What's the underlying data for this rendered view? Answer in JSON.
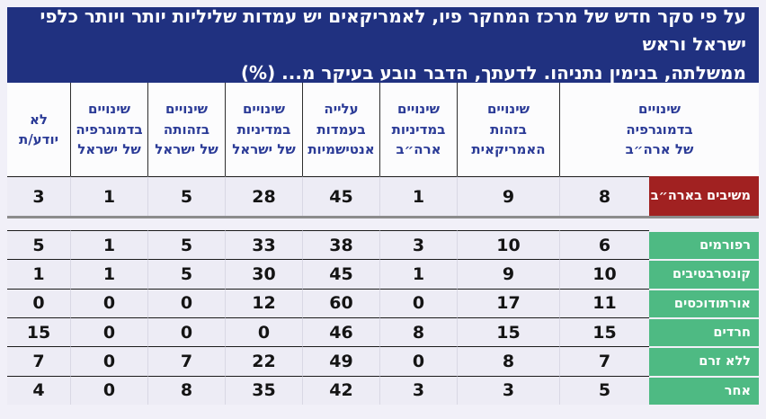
{
  "banner": {
    "line1": "על פי סקר חדש של מרכז המחקר פיו, לאמריקאים יש עמדות שליליות יותר ויותר כלפי ישראל וראש",
    "line2": "ממשלתה, בנימין נתניהו. לדעתך, הדבר נובע בעיקר מ... (%)"
  },
  "table": {
    "column_headers": [
      "שינויים\nבדמוגרפיה\nשל ארה״ב",
      "שינויים\nבזהות\nהאמריקאית",
      "שינויים\nבמדיניות\nארה״ב",
      "עלייה\nבעמדות\nאנטישמיות",
      "שינויים\nבמדיניות\nשל ישראל",
      "שינויים\nבזהותה\nשל ישראל",
      "שינויים\nבדמוגרפיה\nשל ישראל",
      "לא\nיודע/ת"
    ],
    "national_row": {
      "label": "משיבים בארה״ב",
      "values": [
        "8",
        "9",
        "1",
        "45",
        "28",
        "5",
        "1",
        "3"
      ]
    },
    "group_rows": [
      {
        "label": "רפורמים",
        "values": [
          "6",
          "10",
          "3",
          "38",
          "33",
          "5",
          "1",
          "5"
        ]
      },
      {
        "label": "קונסרבטיבים",
        "values": [
          "10",
          "9",
          "1",
          "45",
          "30",
          "5",
          "1",
          "1"
        ]
      },
      {
        "label": "אורתודוכסים",
        "values": [
          "11",
          "17",
          "0",
          "60",
          "12",
          "0",
          "0",
          "0"
        ]
      },
      {
        "label": "חרדים",
        "values": [
          "15",
          "15",
          "8",
          "46",
          "0",
          "0",
          "0",
          "15"
        ]
      },
      {
        "label": "ללא זרם",
        "values": [
          "7",
          "8",
          "0",
          "49",
          "22",
          "7",
          "0",
          "7"
        ]
      },
      {
        "label": "אחר",
        "values": [
          "5",
          "3",
          "3",
          "42",
          "35",
          "8",
          "0",
          "4"
        ]
      }
    ]
  },
  "colors": {
    "banner_bg": "#203180",
    "header_text": "#2b3b97",
    "national_label_bg": "#a12121",
    "group_label_bg": "#4eba83",
    "cell_bg": "#edecf5",
    "page_bg": "#f1f0f8"
  },
  "chart_data": {
    "type": "table",
    "title": "על פי סקר חדש של מרכז המחקר פיו, לאמריקאים יש עמדות שליליות יותר ויותר כלפי ישראל וראש ממשלתה, בנימין נתניהו. לדעתך, הדבר נובע בעיקר מ... (%)",
    "columns": [
      "שינויים בדמוגרפיה של ארה״ב",
      "שינויים בזהות האמריקאית",
      "שינויים במדיניות ארה״ב",
      "עלייה בעמדות אנטישמיות",
      "שינויים במדיניות של ישראל",
      "שינויים בזהותה של ישראל",
      "שינויים בדמוגרפיה של ישראל",
      "לא יודע/ת"
    ],
    "rows": [
      {
        "label": "משיבים בארה״ב",
        "values": [
          8,
          9,
          1,
          45,
          28,
          5,
          1,
          3
        ]
      },
      {
        "label": "רפורמים",
        "values": [
          6,
          10,
          3,
          38,
          33,
          5,
          1,
          5
        ]
      },
      {
        "label": "קונסרבטיבים",
        "values": [
          10,
          9,
          1,
          45,
          30,
          5,
          1,
          1
        ]
      },
      {
        "label": "אורתודוכסים",
        "values": [
          11,
          17,
          0,
          60,
          12,
          0,
          0,
          0
        ]
      },
      {
        "label": "חרדים",
        "values": [
          15,
          15,
          8,
          46,
          0,
          0,
          0,
          15
        ]
      },
      {
        "label": "ללא זרם",
        "values": [
          7,
          8,
          0,
          49,
          22,
          7,
          0,
          7
        ]
      },
      {
        "label": "אחר",
        "values": [
          5,
          3,
          3,
          42,
          35,
          8,
          0,
          4
        ]
      }
    ],
    "value_unit": "%",
    "layout": {
      "direction": "rtl",
      "label_column_side": "right"
    }
  }
}
